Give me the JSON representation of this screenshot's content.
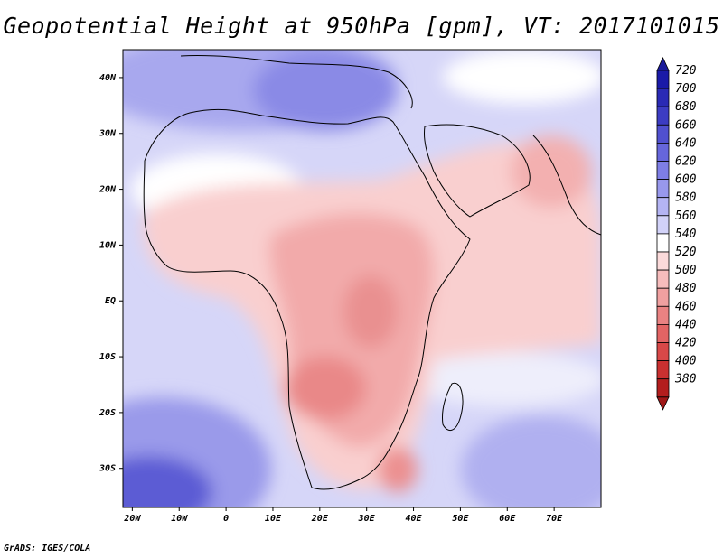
{
  "title": "Geopotential Height at 950hPa [gpm], VT: 2017101015",
  "credit": "GrADS: IGES/COLA",
  "map": {
    "region": "Africa and surrounding oceans",
    "lon_range": [
      -22,
      80
    ],
    "lat_range": [
      -37,
      45
    ],
    "lon_ticks": [
      {
        "label": "20W",
        "value": -20
      },
      {
        "label": "10W",
        "value": -10
      },
      {
        "label": "0",
        "value": 0
      },
      {
        "label": "10E",
        "value": 10
      },
      {
        "label": "20E",
        "value": 20
      },
      {
        "label": "30E",
        "value": 30
      },
      {
        "label": "40E",
        "value": 40
      },
      {
        "label": "50E",
        "value": 50
      },
      {
        "label": "60E",
        "value": 60
      },
      {
        "label": "70E",
        "value": 70
      }
    ],
    "lat_ticks": [
      {
        "label": "40N",
        "value": 40
      },
      {
        "label": "30N",
        "value": 30
      },
      {
        "label": "20N",
        "value": 20
      },
      {
        "label": "10N",
        "value": 10
      },
      {
        "label": "EQ",
        "value": 0
      },
      {
        "label": "10S",
        "value": -10
      },
      {
        "label": "20S",
        "value": -20
      },
      {
        "label": "30S",
        "value": -30
      }
    ]
  },
  "colorbar": {
    "orientation": "vertical",
    "levels": [
      {
        "label": "720",
        "color": "#1a1aa8"
      },
      {
        "label": "700",
        "color": "#2a2ab5"
      },
      {
        "label": "680",
        "color": "#3c3cc3"
      },
      {
        "label": "660",
        "color": "#5050cf"
      },
      {
        "label": "640",
        "color": "#6666db"
      },
      {
        "label": "620",
        "color": "#7e7ee5"
      },
      {
        "label": "600",
        "color": "#9898ec"
      },
      {
        "label": "580",
        "color": "#b4b4f3"
      },
      {
        "label": "560",
        "color": "#d2d2f8"
      },
      {
        "label": "540",
        "color": "#ffffff"
      },
      {
        "label": "520",
        "color": "#fbdada"
      },
      {
        "label": "500",
        "color": "#f6bcbc"
      },
      {
        "label": "480",
        "color": "#f0a0a0"
      },
      {
        "label": "460",
        "color": "#e98282"
      },
      {
        "label": "440",
        "color": "#e26464"
      },
      {
        "label": "420",
        "color": "#d84848"
      },
      {
        "label": "400",
        "color": "#c93030"
      },
      {
        "label": "380",
        "color": "#b31e1e"
      }
    ],
    "top_cap_color": "#1a1a9a",
    "bottom_cap_color": "#a01818"
  }
}
